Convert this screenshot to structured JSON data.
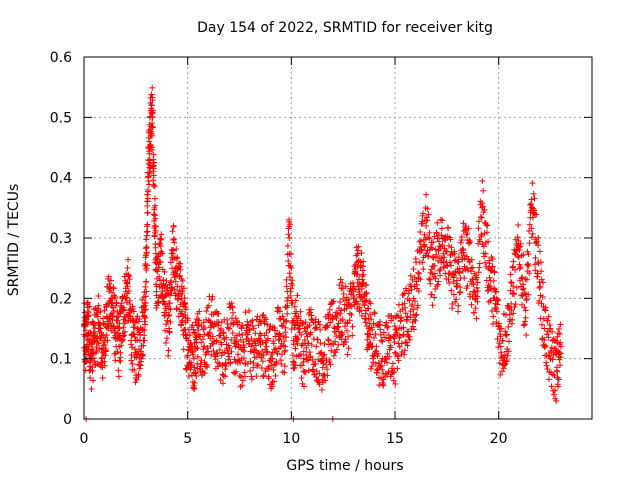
{
  "chart_data": {
    "type": "scatter",
    "title": "Day 154 of 2022, SRMTID for receiver kitg",
    "xlabel": "GPS time / hours",
    "ylabel": "SRMTID / TECUs",
    "xlim": [
      0,
      24.5
    ],
    "ylim": [
      0,
      0.6
    ],
    "xticks": [
      0,
      5,
      10,
      15,
      20
    ],
    "xtick_labels": [
      "0",
      "5",
      "10",
      "15",
      "20"
    ],
    "yticks": [
      0,
      0.1,
      0.2,
      0.3,
      0.4,
      0.5,
      0.6
    ],
    "ytick_labels": [
      "0",
      "0.1",
      "0.2",
      "0.3",
      "0.4",
      "0.5",
      "0.6"
    ],
    "grid": true,
    "marker": "plus",
    "color": "#ff0000",
    "series": [
      {
        "name": "SRMTID",
        "x": [
          0.0,
          0.1,
          0.2,
          0.35,
          0.5,
          0.7,
          0.9,
          1.1,
          1.3,
          1.5,
          1.7,
          1.9,
          2.1,
          2.3,
          2.5,
          2.7,
          2.9,
          3.0,
          3.1,
          3.2,
          3.3,
          3.4,
          3.5,
          3.7,
          3.9,
          4.1,
          4.3,
          4.5,
          4.7,
          4.9,
          5.1,
          5.3,
          5.5,
          5.8,
          6.1,
          6.4,
          6.7,
          7.0,
          7.3,
          7.6,
          7.9,
          8.2,
          8.5,
          8.8,
          9.1,
          9.4,
          9.7,
          9.9,
          10.1,
          10.3,
          10.6,
          10.9,
          11.2,
          11.5,
          11.8,
          12.1,
          12.4,
          12.7,
          13.0,
          13.2,
          13.4,
          13.6,
          13.8,
          14.1,
          14.4,
          14.7,
          15.0,
          15.3,
          15.6,
          15.9,
          16.2,
          16.5,
          16.8,
          17.1,
          17.4,
          17.7,
          18.0,
          18.3,
          18.6,
          18.9,
          19.2,
          19.5,
          19.8,
          20.1,
          20.4,
          20.7,
          21.0,
          21.3,
          21.6,
          21.9,
          22.2,
          22.5,
          22.8,
          23.0
        ],
        "y": [
          0.14,
          0.12,
          0.16,
          0.1,
          0.13,
          0.15,
          0.11,
          0.17,
          0.2,
          0.15,
          0.12,
          0.18,
          0.22,
          0.14,
          0.11,
          0.13,
          0.17,
          0.25,
          0.4,
          0.48,
          0.5,
          0.35,
          0.22,
          0.26,
          0.19,
          0.15,
          0.28,
          0.22,
          0.2,
          0.14,
          0.12,
          0.1,
          0.14,
          0.12,
          0.16,
          0.13,
          0.11,
          0.15,
          0.12,
          0.1,
          0.14,
          0.11,
          0.13,
          0.12,
          0.1,
          0.14,
          0.12,
          0.3,
          0.13,
          0.16,
          0.1,
          0.14,
          0.12,
          0.1,
          0.13,
          0.15,
          0.18,
          0.16,
          0.2,
          0.24,
          0.22,
          0.18,
          0.14,
          0.12,
          0.1,
          0.13,
          0.11,
          0.15,
          0.17,
          0.2,
          0.26,
          0.32,
          0.24,
          0.28,
          0.3,
          0.24,
          0.22,
          0.28,
          0.26,
          0.2,
          0.35,
          0.25,
          0.2,
          0.12,
          0.14,
          0.22,
          0.28,
          0.18,
          0.35,
          0.26,
          0.15,
          0.1,
          0.08,
          0.12
        ]
      }
    ],
    "zero_points_x": [
      0.1,
      10.1,
      12.0
    ]
  }
}
